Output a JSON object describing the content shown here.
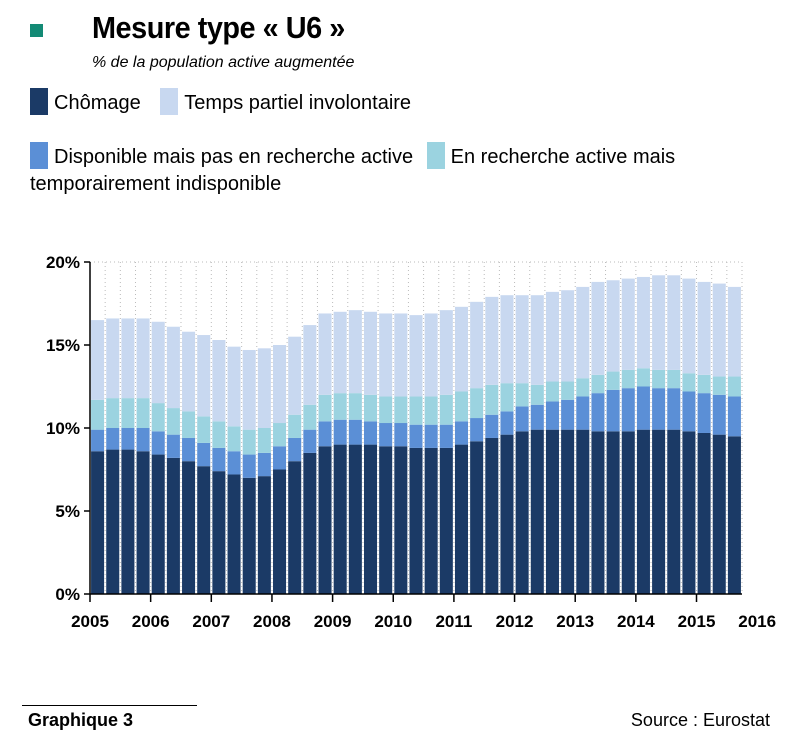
{
  "header": {
    "title": "Mesure type « U6 »",
    "subtitle": "% de la population active augmentée",
    "marker_color": "#138a75"
  },
  "footer": {
    "figure_label": "Graphique 3",
    "source": "Source : Eurostat"
  },
  "chart_data": {
    "type": "bar",
    "stacked": true,
    "title": "Mesure type « U6 »",
    "subtitle": "% de la population active augmentée",
    "xlabel": "",
    "ylabel": "",
    "ylim": [
      0,
      20
    ],
    "yticks": [
      "0%",
      "5%",
      "10%",
      "15%",
      "20%"
    ],
    "ytick_values": [
      0,
      5,
      10,
      15,
      20
    ],
    "xtick_labels": [
      "2005",
      "2006",
      "2007",
      "2008",
      "2009",
      "2010",
      "2011",
      "2012",
      "2013",
      "2014",
      "2015",
      "2016"
    ],
    "bars_per_year": 4,
    "grid": {
      "vertical": true,
      "style": "dotted"
    },
    "legend_placement": "top",
    "series": [
      {
        "name": "Chômage",
        "color": "#1b3a66",
        "values": [
          8.6,
          8.7,
          8.7,
          8.6,
          8.4,
          8.2,
          8.0,
          7.7,
          7.4,
          7.2,
          7.0,
          7.1,
          7.5,
          8.0,
          8.5,
          8.9,
          9.0,
          9.0,
          9.0,
          8.9,
          8.9,
          8.8,
          8.8,
          8.8,
          9.0,
          9.2,
          9.4,
          9.6,
          9.8,
          9.9,
          9.9,
          9.9,
          9.9,
          9.8,
          9.8,
          9.8,
          9.9,
          9.9,
          9.9,
          9.8,
          9.7,
          9.6,
          9.5
        ]
      },
      {
        "name": "Disponible mais pas en recherche active",
        "color": "#5b8fd6",
        "values": [
          1.3,
          1.3,
          1.3,
          1.4,
          1.4,
          1.4,
          1.4,
          1.4,
          1.4,
          1.4,
          1.4,
          1.4,
          1.4,
          1.4,
          1.4,
          1.5,
          1.5,
          1.5,
          1.4,
          1.4,
          1.4,
          1.4,
          1.4,
          1.4,
          1.4,
          1.4,
          1.4,
          1.4,
          1.5,
          1.5,
          1.7,
          1.8,
          2.0,
          2.3,
          2.5,
          2.6,
          2.6,
          2.5,
          2.5,
          2.4,
          2.4,
          2.4,
          2.4
        ]
      },
      {
        "name": "En recherche active mais temporairement indisponible",
        "color": "#9bd3e0",
        "values": [
          1.8,
          1.8,
          1.8,
          1.8,
          1.7,
          1.6,
          1.6,
          1.6,
          1.6,
          1.5,
          1.5,
          1.5,
          1.4,
          1.4,
          1.5,
          1.6,
          1.6,
          1.6,
          1.6,
          1.6,
          1.6,
          1.7,
          1.7,
          1.8,
          1.8,
          1.8,
          1.8,
          1.7,
          1.4,
          1.2,
          1.2,
          1.1,
          1.1,
          1.1,
          1.1,
          1.1,
          1.1,
          1.1,
          1.1,
          1.1,
          1.1,
          1.1,
          1.2
        ]
      },
      {
        "name": "Temps partiel involontaire",
        "color": "#c8d8f0",
        "values": [
          4.8,
          4.8,
          4.8,
          4.8,
          4.9,
          4.9,
          4.8,
          4.9,
          4.9,
          4.8,
          4.8,
          4.8,
          4.7,
          4.7,
          4.8,
          4.9,
          4.9,
          5.0,
          5.0,
          5.0,
          5.0,
          4.9,
          5.0,
          5.1,
          5.1,
          5.2,
          5.3,
          5.3,
          5.3,
          5.4,
          5.4,
          5.5,
          5.5,
          5.6,
          5.5,
          5.5,
          5.5,
          5.7,
          5.7,
          5.7,
          5.6,
          5.6,
          5.4
        ]
      }
    ]
  }
}
